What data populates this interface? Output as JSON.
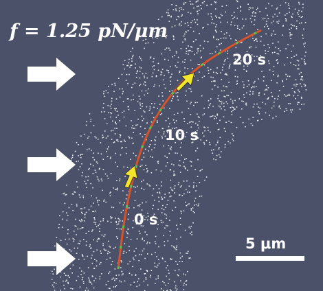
{
  "annotation": {
    "force_label": "f = 1.25 pN/μm"
  },
  "time_labels": [
    "20 s",
    "10 s",
    "0 s"
  ],
  "scale_bar": {
    "label": "5 μm"
  }
}
